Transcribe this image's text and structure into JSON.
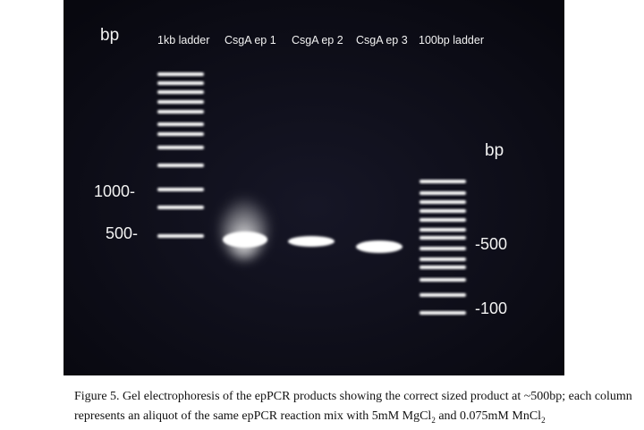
{
  "gel": {
    "bp_label_left": "bp",
    "bp_label_right": "bp",
    "lanes": [
      "1kb ladder",
      "CsgA ep 1",
      "CsgA ep 2",
      "CsgA ep 3",
      "100bp ladder"
    ],
    "left_markers": [
      "1000-",
      "500-"
    ],
    "right_markers": [
      "-500",
      "-100"
    ]
  },
  "caption": {
    "text_1": "Figure 5. Gel electrophoresis of the epPCR products showing the correct sized product at ~500bp; each column represents an aliquot of the same epPCR reaction mix with 5mM MgCl",
    "sub_1": "2",
    "text_2": " and 0.075mM MnCl",
    "sub_2": "2"
  },
  "colors": {
    "gel_background": "#0d0d1a",
    "band": "#ffffff",
    "label": "#f2f2f2"
  }
}
